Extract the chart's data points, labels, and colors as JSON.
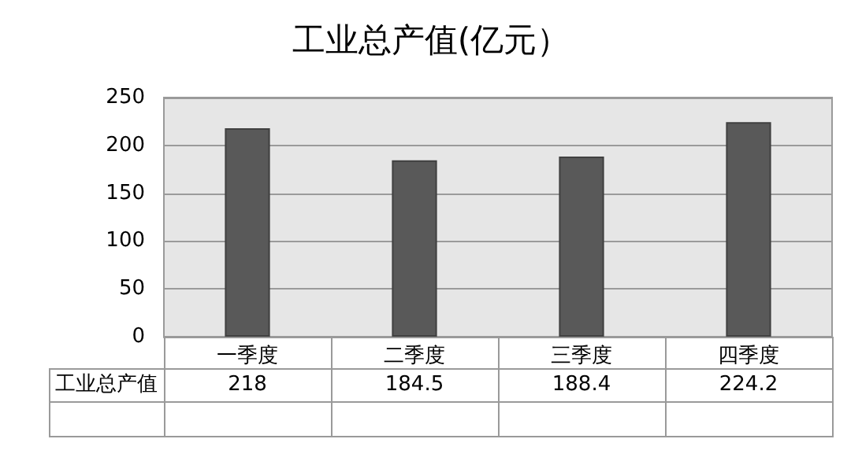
{
  "chart_data": {
    "type": "bar",
    "title": "工业总产值(亿元）",
    "categories": [
      "一季度",
      "二季度",
      "三季度",
      "四季度"
    ],
    "series": [
      {
        "name": "工业总产值",
        "color": "#595959",
        "values": [
          218,
          184.5,
          188.4,
          224.2
        ]
      }
    ],
    "ylim": [
      0,
      250
    ],
    "yticks": [
      0,
      50,
      100,
      150,
      200,
      250
    ],
    "grid": "y",
    "data_labels": true,
    "legend": false
  }
}
